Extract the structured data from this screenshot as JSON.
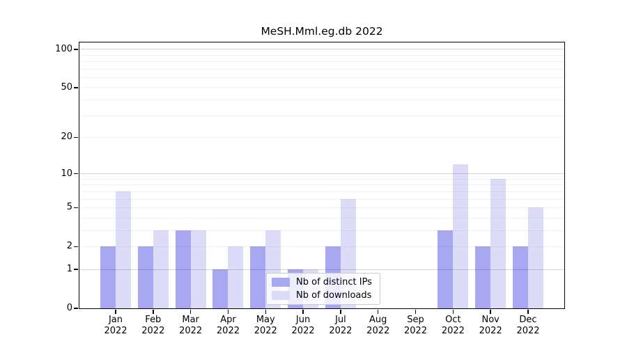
{
  "chart_data": {
    "type": "bar",
    "title": "MeSH.Mml.eg.db 2022",
    "categories": [
      "Jan 2022",
      "Feb 2022",
      "Mar 2022",
      "Apr 2022",
      "May 2022",
      "Jun 2022",
      "Jul 2022",
      "Aug 2022",
      "Sep 2022",
      "Oct 2022",
      "Nov 2022",
      "Dec 2022"
    ],
    "series": [
      {
        "name": "Nb of distinct IPs",
        "color": "#a7a7f2",
        "values": [
          2,
          2,
          3,
          1,
          2,
          1,
          2,
          0,
          0,
          3,
          2,
          2
        ]
      },
      {
        "name": "Nb of downloads",
        "color": "#dcdcf8",
        "values": [
          7,
          3,
          3,
          2,
          3,
          1,
          6,
          0,
          0,
          12,
          9,
          5
        ]
      }
    ],
    "xlabel": "",
    "ylabel": "",
    "yscale": "log1p",
    "ylim": [
      0,
      113
    ],
    "ytick_values": [
      0,
      1,
      2,
      5,
      10,
      20,
      50,
      100
    ],
    "major_grid_values": [
      1,
      10,
      100
    ],
    "minor_grid_values": [
      2,
      3,
      4,
      5,
      6,
      7,
      8,
      9,
      20,
      30,
      40,
      50,
      60,
      70,
      80,
      90
    ],
    "grid": true,
    "legend_position": "lower center"
  },
  "colors": {
    "distinct_ips_bar": "#a7a7f2",
    "downloads_bar": "#dcdcf8",
    "major_gridline": "#c8c8c8",
    "minor_gridline": "#ebebeb",
    "axis": "#000000",
    "legend_border": "#cccccc"
  }
}
